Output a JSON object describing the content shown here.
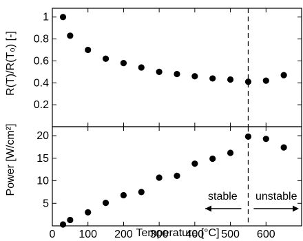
{
  "chart_data": [
    {
      "type": "scatter",
      "ylabel": "R(T)/R(T₀) [-]",
      "xlim": [
        0,
        700
      ],
      "ylim": [
        0,
        1.08
      ],
      "yticks": [
        "0.2",
        "0.4",
        "0.6",
        "0.8",
        "1"
      ],
      "ytick_values": [
        0.2,
        0.4,
        0.6,
        0.8,
        1.0
      ],
      "series": [
        {
          "x": [
            30,
            50,
            100,
            150,
            200,
            250,
            300,
            350,
            400,
            450,
            500,
            550,
            600,
            650
          ],
          "y": [
            1.0,
            0.83,
            0.7,
            0.62,
            0.58,
            0.54,
            0.5,
            0.48,
            0.46,
            0.44,
            0.43,
            0.41,
            0.42,
            0.47
          ]
        }
      ]
    },
    {
      "type": "scatter",
      "ylabel": "Power [W/cm²]",
      "xlabel": "Temperature [°C]",
      "xlim": [
        0,
        700
      ],
      "ylim": [
        0,
        22
      ],
      "xticks": [
        "0",
        "100",
        "200",
        "300",
        "400",
        "500",
        "600"
      ],
      "xtick_values": [
        0,
        100,
        200,
        300,
        400,
        500,
        600
      ],
      "yticks": [
        "5",
        "10",
        "15",
        "20"
      ],
      "ytick_values": [
        5,
        10,
        15,
        20
      ],
      "series": [
        {
          "x": [
            30,
            50,
            100,
            150,
            200,
            250,
            300,
            350,
            400,
            450,
            500,
            550,
            600,
            650
          ],
          "y": [
            0.3,
            1.3,
            3.0,
            5.1,
            6.8,
            7.5,
            10.7,
            11.1,
            13.8,
            14.9,
            16.2,
            19.8,
            19.3,
            17.4
          ]
        }
      ],
      "annotations": {
        "stable": "stable",
        "unstable": "unstable"
      }
    }
  ],
  "threshold_x": 550
}
